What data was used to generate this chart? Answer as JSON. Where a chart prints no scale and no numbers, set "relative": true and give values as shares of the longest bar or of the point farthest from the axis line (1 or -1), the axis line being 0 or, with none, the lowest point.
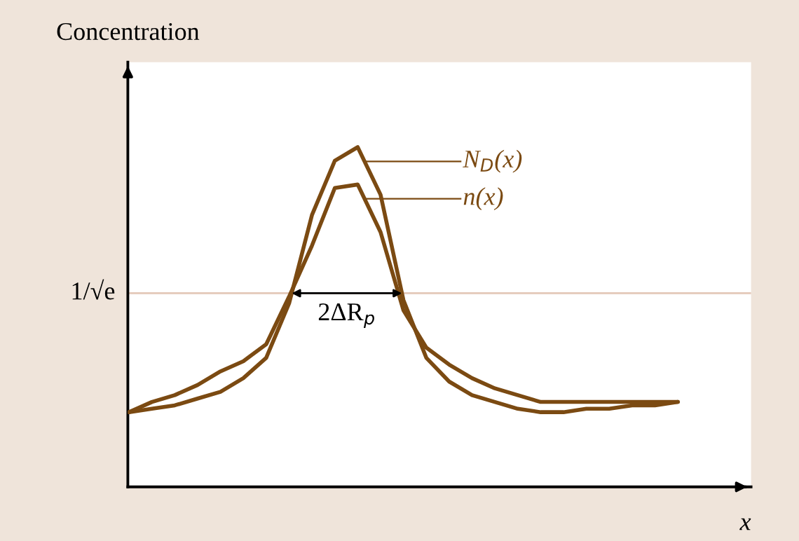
{
  "chart_data": {
    "type": "line",
    "relative": true,
    "ylabel": "Concentration",
    "xlabel": "x",
    "categories": [
      null,
      null,
      null,
      null,
      null,
      null,
      null,
      null,
      null,
      null,
      null,
      null,
      null,
      null,
      null,
      null,
      null,
      null,
      null,
      null,
      null,
      null,
      null,
      null,
      null,
      null,
      null,
      null
    ],
    "series": [
      {
        "name": "N$_{D}$(x)",
        "color": "#7b4a12",
        "values": [
          0.22,
          0.23,
          0.24,
          0.26,
          0.28,
          0.32,
          0.38,
          0.54,
          0.8,
          0.96,
          1.0,
          0.86,
          0.55,
          0.38,
          0.31,
          0.27,
          0.25,
          0.23,
          0.22,
          0.22,
          0.23,
          0.23,
          0.24,
          0.24,
          0.25,
          null,
          null,
          null
        ]
      },
      {
        "name": "n(x)",
        "color": "#7b4a12",
        "values": [
          0.22,
          0.25,
          0.27,
          0.3,
          0.34,
          0.37,
          0.42,
          0.56,
          0.71,
          0.88,
          0.89,
          0.75,
          0.52,
          0.41,
          0.36,
          0.32,
          0.29,
          0.27,
          0.25,
          0.25,
          0.25,
          0.25,
          0.25,
          0.25,
          0.25,
          null,
          null,
          null
        ]
      }
    ],
    "ref_lines": [
      {
        "axis": "y",
        "value": 0.57,
        "label": "1/√e",
        "color": "#e3c8b8"
      }
    ],
    "annotations": [
      {
        "text": "2ΔR$_{p}$",
        "y": 0.57
      }
    ],
    "grid": false,
    "legend": "top"
  }
}
